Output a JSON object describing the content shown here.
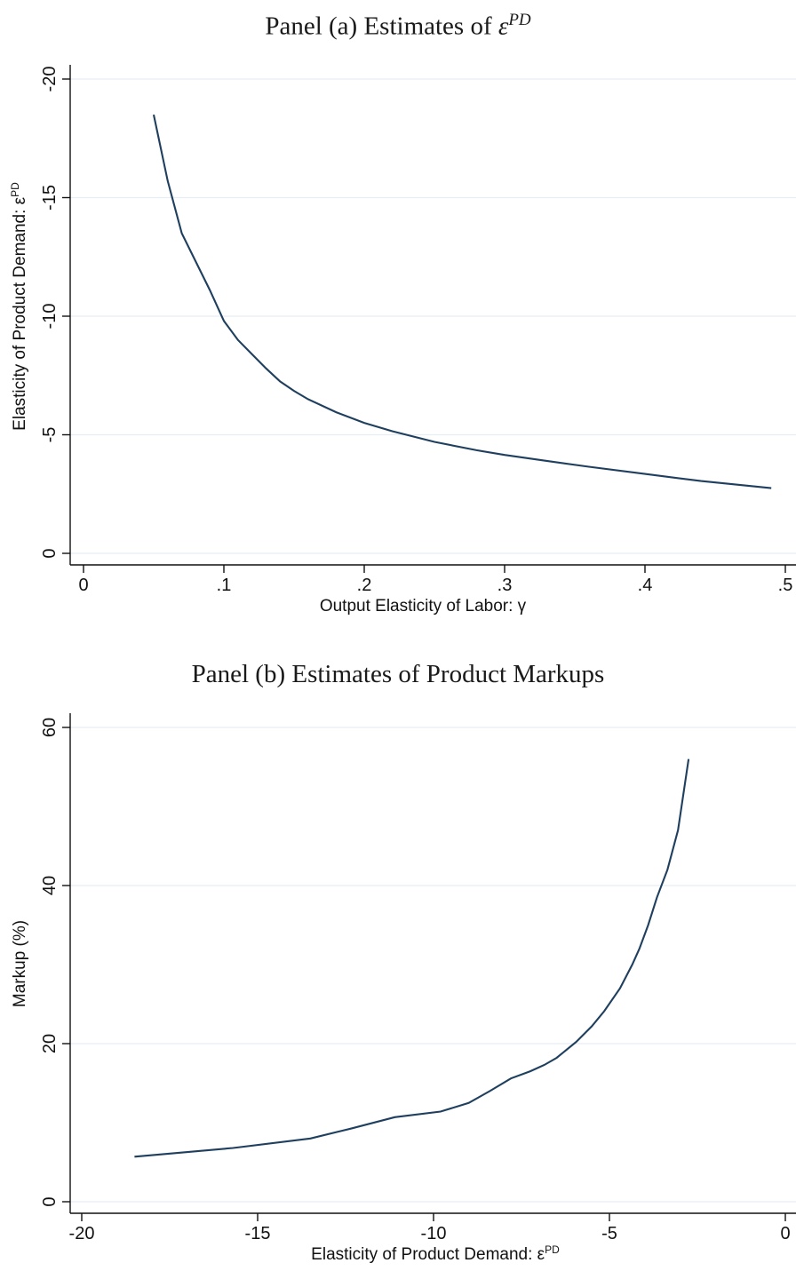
{
  "chart_data": [
    {
      "type": "line",
      "title_prefix": "Panel (a) Estimates of ",
      "title_symbol": "ε",
      "title_sup": "PD",
      "xlabel": "Output Elasticity of Labor: γ",
      "ylabel": "Elasticity of Product Demand: ε",
      "ylabel_sup": "PD",
      "xlim": [
        0,
        0.5
      ],
      "ylim": [
        -20,
        0
      ],
      "x_ticks": [
        0,
        0.1,
        0.2,
        0.3,
        0.4,
        0.5
      ],
      "x_tick_labels": [
        "0",
        ".1",
        ".2",
        ".3",
        ".4",
        ".5"
      ],
      "y_ticks": [
        0,
        -5,
        -10,
        -15,
        -20
      ],
      "y_tick_labels": [
        "0",
        "-5",
        "-10",
        "-15",
        "-20"
      ],
      "grid": true,
      "series": [
        {
          "color": "#1f3f5f",
          "x": [
            0.05,
            0.06,
            0.07,
            0.08,
            0.09,
            0.1,
            0.11,
            0.12,
            0.13,
            0.14,
            0.15,
            0.16,
            0.18,
            0.2,
            0.22,
            0.25,
            0.28,
            0.3,
            0.33,
            0.36,
            0.4,
            0.44,
            0.49
          ],
          "y": [
            -18.5,
            -15.7,
            -13.5,
            -12.3,
            -11.1,
            -9.8,
            -9.0,
            -8.4,
            -7.8,
            -7.25,
            -6.85,
            -6.5,
            -5.95,
            -5.5,
            -5.15,
            -4.7,
            -4.35,
            -4.15,
            -3.9,
            -3.65,
            -3.35,
            -3.05,
            -2.75
          ]
        }
      ]
    },
    {
      "type": "line",
      "title": "Panel (b) Estimates of Product Markups",
      "xlabel": "Elasticity of Product Demand: ε",
      "xlabel_sup": "PD",
      "ylabel": "Markup (%)",
      "xlim": [
        -20,
        0
      ],
      "ylim": [
        0,
        60
      ],
      "x_ticks": [
        -20,
        -15,
        -10,
        -5,
        0
      ],
      "x_tick_labels": [
        "-20",
        "-15",
        "-10",
        "-5",
        "0"
      ],
      "y_ticks": [
        0,
        20,
        40,
        60
      ],
      "y_tick_labels": [
        "0",
        "20",
        "40",
        "60"
      ],
      "grid": true,
      "series": [
        {
          "color": "#1f3f5f",
          "x": [
            -18.5,
            -15.7,
            -13.5,
            -12.3,
            -11.1,
            -9.8,
            -9.0,
            -8.4,
            -7.8,
            -7.25,
            -6.85,
            -6.5,
            -5.95,
            -5.5,
            -5.15,
            -4.7,
            -4.35,
            -4.15,
            -3.9,
            -3.65,
            -3.35,
            -3.05,
            -2.75
          ],
          "y": [
            5.7,
            6.8,
            8.0,
            9.3,
            10.7,
            11.4,
            12.5,
            14.0,
            15.6,
            16.5,
            17.3,
            18.2,
            20.2,
            22.2,
            24.1,
            27.0,
            30.0,
            32.0,
            35.0,
            38.5,
            42.0,
            47.0,
            56.0
          ]
        }
      ]
    }
  ]
}
